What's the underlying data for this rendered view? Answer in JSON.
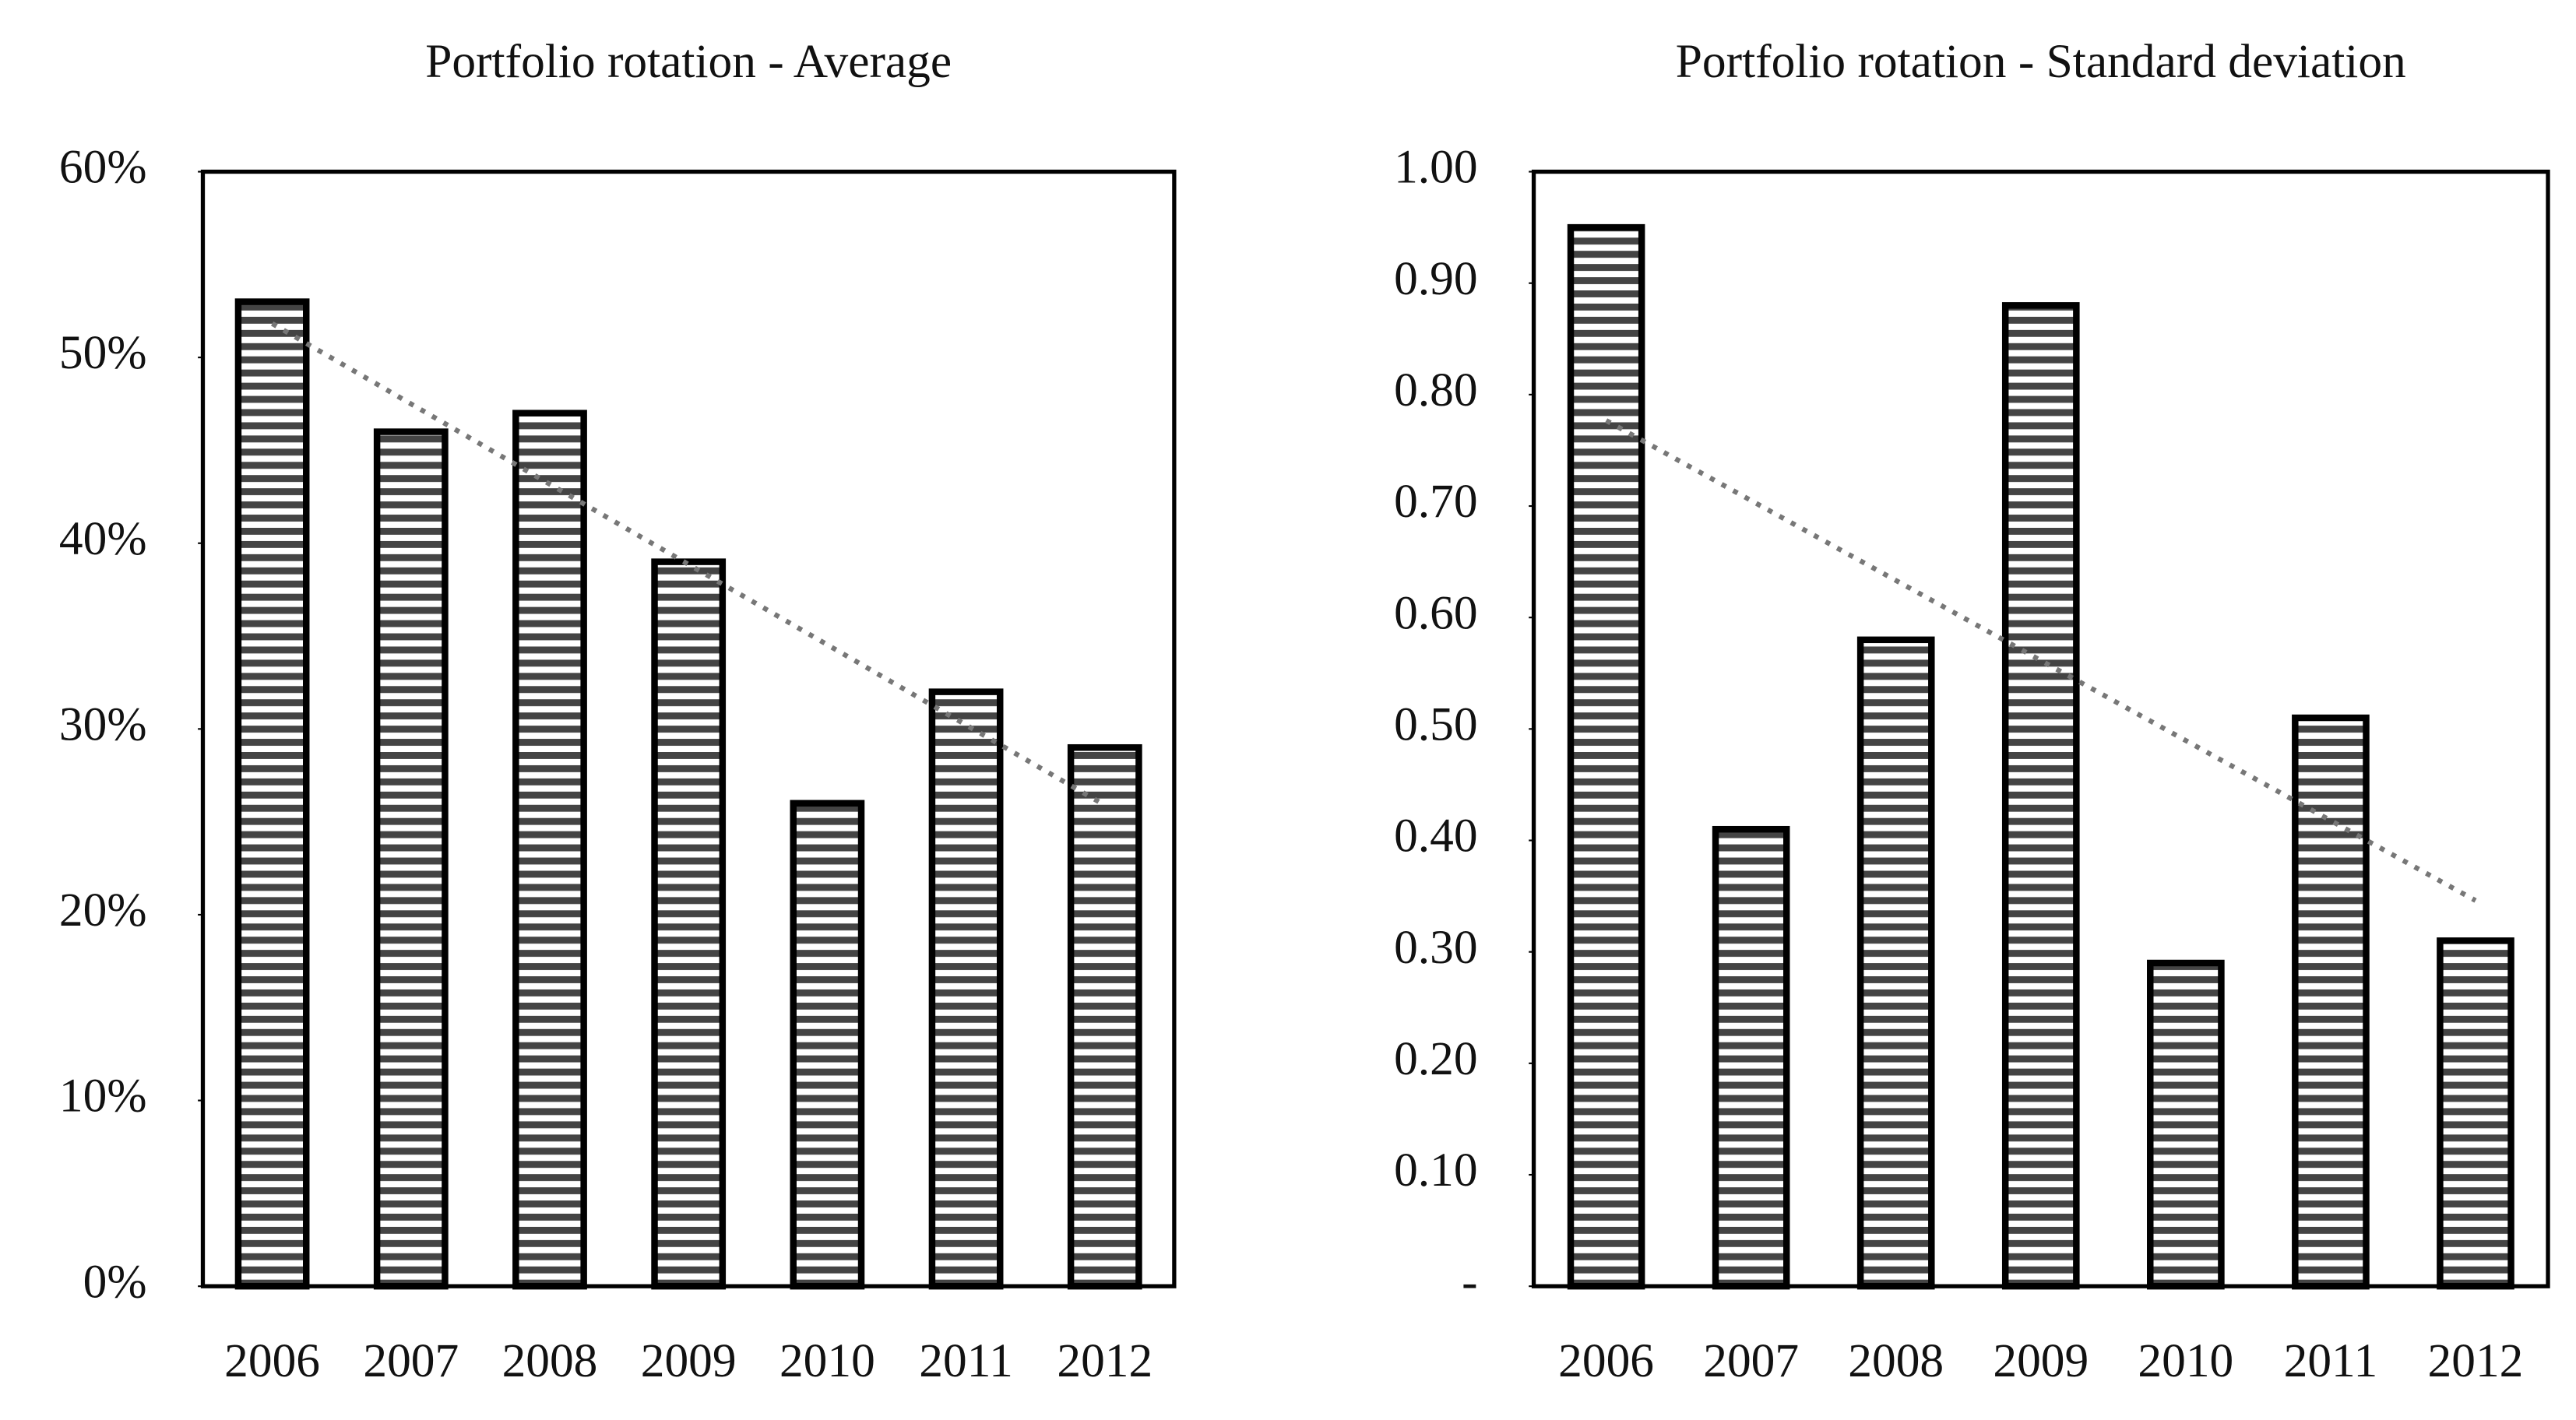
{
  "chart_data": [
    {
      "type": "bar",
      "title": "Portfolio rotation - Average",
      "categories": [
        "2006",
        "2007",
        "2008",
        "2009",
        "2010",
        "2011",
        "2012"
      ],
      "values": [
        53,
        46,
        47,
        39,
        26,
        32,
        29
      ],
      "ylim": [
        0,
        60
      ],
      "yticks": [
        {
          "value": 0,
          "label": "0%"
        },
        {
          "value": 10,
          "label": "10%"
        },
        {
          "value": 20,
          "label": "20%"
        },
        {
          "value": 30,
          "label": "30%"
        },
        {
          "value": 40,
          "label": "40%"
        },
        {
          "value": 50,
          "label": "50%"
        },
        {
          "value": 60,
          "label": "60%"
        }
      ],
      "color": "#000000",
      "trendline": true
    },
    {
      "type": "bar",
      "title": "Portfolio rotation - Standard deviation",
      "categories": [
        "2006",
        "2007",
        "2008",
        "2009",
        "2010",
        "2011",
        "2012"
      ],
      "values": [
        0.95,
        0.41,
        0.58,
        0.88,
        0.29,
        0.51,
        0.31
      ],
      "ylim": [
        0,
        1
      ],
      "yticks": [
        {
          "value": 0,
          "label": "-"
        },
        {
          "value": 0.1,
          "label": "0.10"
        },
        {
          "value": 0.2,
          "label": "0.20"
        },
        {
          "value": 0.3,
          "label": "0.30"
        },
        {
          "value": 0.4,
          "label": "0.40"
        },
        {
          "value": 0.5,
          "label": "0.50"
        },
        {
          "value": 0.6,
          "label": "0.60"
        },
        {
          "value": 0.7,
          "label": "0.70"
        },
        {
          "value": 0.8,
          "label": "0.80"
        },
        {
          "value": 0.9,
          "label": "0.90"
        },
        {
          "value": 1,
          "label": "1.00"
        }
      ],
      "color": "#000000",
      "trendline": true
    }
  ]
}
